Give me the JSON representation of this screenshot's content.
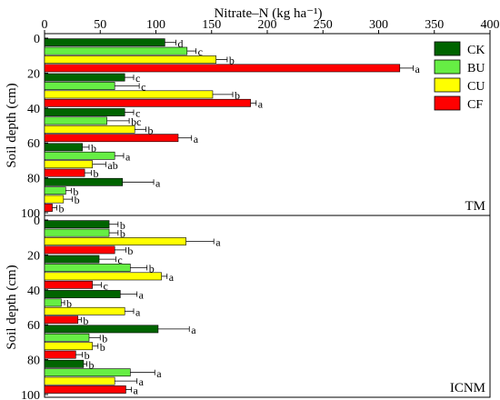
{
  "chart_data": [
    {
      "type": "bar",
      "orientation": "horizontal",
      "title": "",
      "xlabel": "Nitrate–N (kg ha⁻¹)",
      "ylabel": "Soil depth (cm)",
      "xlim": [
        0,
        400
      ],
      "ylim": [
        0,
        100
      ],
      "xticks": [
        0,
        50,
        100,
        150,
        200,
        250,
        300,
        350,
        400
      ],
      "yticks": [
        0,
        20,
        40,
        60,
        80,
        100
      ],
      "x_axis_position": "top",
      "grid": false,
      "legend_position": "top-right",
      "panel_label": "TM",
      "groups": [
        {
          "depth": [
            0,
            20
          ],
          "bars": [
            {
              "series": "CK",
              "value": 108,
              "error": 10,
              "letter": "d"
            },
            {
              "series": "BU",
              "value": 128,
              "error": 8,
              "letter": "c"
            },
            {
              "series": "CU",
              "value": 154,
              "error": 10,
              "letter": "b"
            },
            {
              "series": "CF",
              "value": 319,
              "error": 12,
              "letter": "a"
            }
          ]
        },
        {
          "depth": [
            20,
            40
          ],
          "bars": [
            {
              "series": "CK",
              "value": 72,
              "error": 8,
              "letter": "c"
            },
            {
              "series": "BU",
              "value": 63,
              "error": 22,
              "letter": "c"
            },
            {
              "series": "CU",
              "value": 151,
              "error": 18,
              "letter": "b"
            },
            {
              "series": "CF",
              "value": 185,
              "error": 5,
              "letter": "a"
            }
          ]
        },
        {
          "depth": [
            40,
            60
          ],
          "bars": [
            {
              "series": "CK",
              "value": 72,
              "error": 8,
              "letter": "c"
            },
            {
              "series": "BU",
              "value": 56,
              "error": 20,
              "letter": "bc"
            },
            {
              "series": "CU",
              "value": 81,
              "error": 10,
              "letter": "b"
            },
            {
              "series": "CF",
              "value": 120,
              "error": 12,
              "letter": "a"
            }
          ]
        },
        {
          "depth": [
            60,
            80
          ],
          "bars": [
            {
              "series": "CK",
              "value": 34,
              "error": 6,
              "letter": "b"
            },
            {
              "series": "BU",
              "value": 63,
              "error": 8,
              "letter": "a"
            },
            {
              "series": "CU",
              "value": 43,
              "error": 12,
              "letter": "ab"
            },
            {
              "series": "CF",
              "value": 36,
              "error": 6,
              "letter": "b"
            }
          ]
        },
        {
          "depth": [
            80,
            100
          ],
          "bars": [
            {
              "series": "CK",
              "value": 70,
              "error": 28,
              "letter": "a"
            },
            {
              "series": "BU",
              "value": 19,
              "error": 5,
              "letter": "b"
            },
            {
              "series": "CU",
              "value": 17,
              "error": 8,
              "letter": "b"
            },
            {
              "series": "CF",
              "value": 7,
              "error": 4,
              "letter": "b"
            }
          ]
        }
      ]
    },
    {
      "type": "bar",
      "orientation": "horizontal",
      "title": "",
      "xlabel": "",
      "ylabel": "Soil depth (cm)",
      "xlim": [
        0,
        400
      ],
      "ylim": [
        0,
        100
      ],
      "yticks": [
        0,
        20,
        40,
        60,
        80,
        100
      ],
      "grid": false,
      "panel_label": "ICNM",
      "groups": [
        {
          "depth": [
            0,
            20
          ],
          "bars": [
            {
              "series": "CK",
              "value": 58,
              "error": 8,
              "letter": "b"
            },
            {
              "series": "BU",
              "value": 58,
              "error": 8,
              "letter": "b"
            },
            {
              "series": "CU",
              "value": 127,
              "error": 25,
              "letter": "a"
            },
            {
              "series": "CF",
              "value": 63,
              "error": 10,
              "letter": "b"
            }
          ]
        },
        {
          "depth": [
            20,
            40
          ],
          "bars": [
            {
              "series": "CK",
              "value": 49,
              "error": 15,
              "letter": "c"
            },
            {
              "series": "BU",
              "value": 77,
              "error": 15,
              "letter": "b"
            },
            {
              "series": "CU",
              "value": 105,
              "error": 5,
              "letter": "a"
            },
            {
              "series": "CF",
              "value": 43,
              "error": 8,
              "letter": "c"
            }
          ]
        },
        {
          "depth": [
            40,
            60
          ],
          "bars": [
            {
              "series": "CK",
              "value": 68,
              "error": 15,
              "letter": "a"
            },
            {
              "series": "BU",
              "value": 15,
              "error": 3,
              "letter": "b"
            },
            {
              "series": "CU",
              "value": 72,
              "error": 8,
              "letter": "a"
            },
            {
              "series": "CF",
              "value": 30,
              "error": 3,
              "letter": "b"
            }
          ]
        },
        {
          "depth": [
            60,
            80
          ],
          "bars": [
            {
              "series": "CK",
              "value": 102,
              "error": 28,
              "letter": "a"
            },
            {
              "series": "BU",
              "value": 40,
              "error": 10,
              "letter": "b"
            },
            {
              "series": "CU",
              "value": 43,
              "error": 5,
              "letter": "b"
            },
            {
              "series": "CF",
              "value": 28,
              "error": 6,
              "letter": "b"
            }
          ]
        },
        {
          "depth": [
            80,
            100
          ],
          "bars": [
            {
              "series": "CK",
              "value": 35,
              "error": 3,
              "letter": "b"
            },
            {
              "series": "BU",
              "value": 77,
              "error": 22,
              "letter": "a"
            },
            {
              "series": "CU",
              "value": 63,
              "error": 20,
              "letter": "a"
            },
            {
              "series": "CF",
              "value": 73,
              "error": 5,
              "letter": "a"
            }
          ]
        }
      ]
    }
  ],
  "legend": [
    {
      "name": "CK",
      "color": "#006400"
    },
    {
      "name": "BU",
      "color": "#66ee44"
    },
    {
      "name": "CU",
      "color": "#ffff00"
    },
    {
      "name": "CF",
      "color": "#ff0000"
    }
  ]
}
